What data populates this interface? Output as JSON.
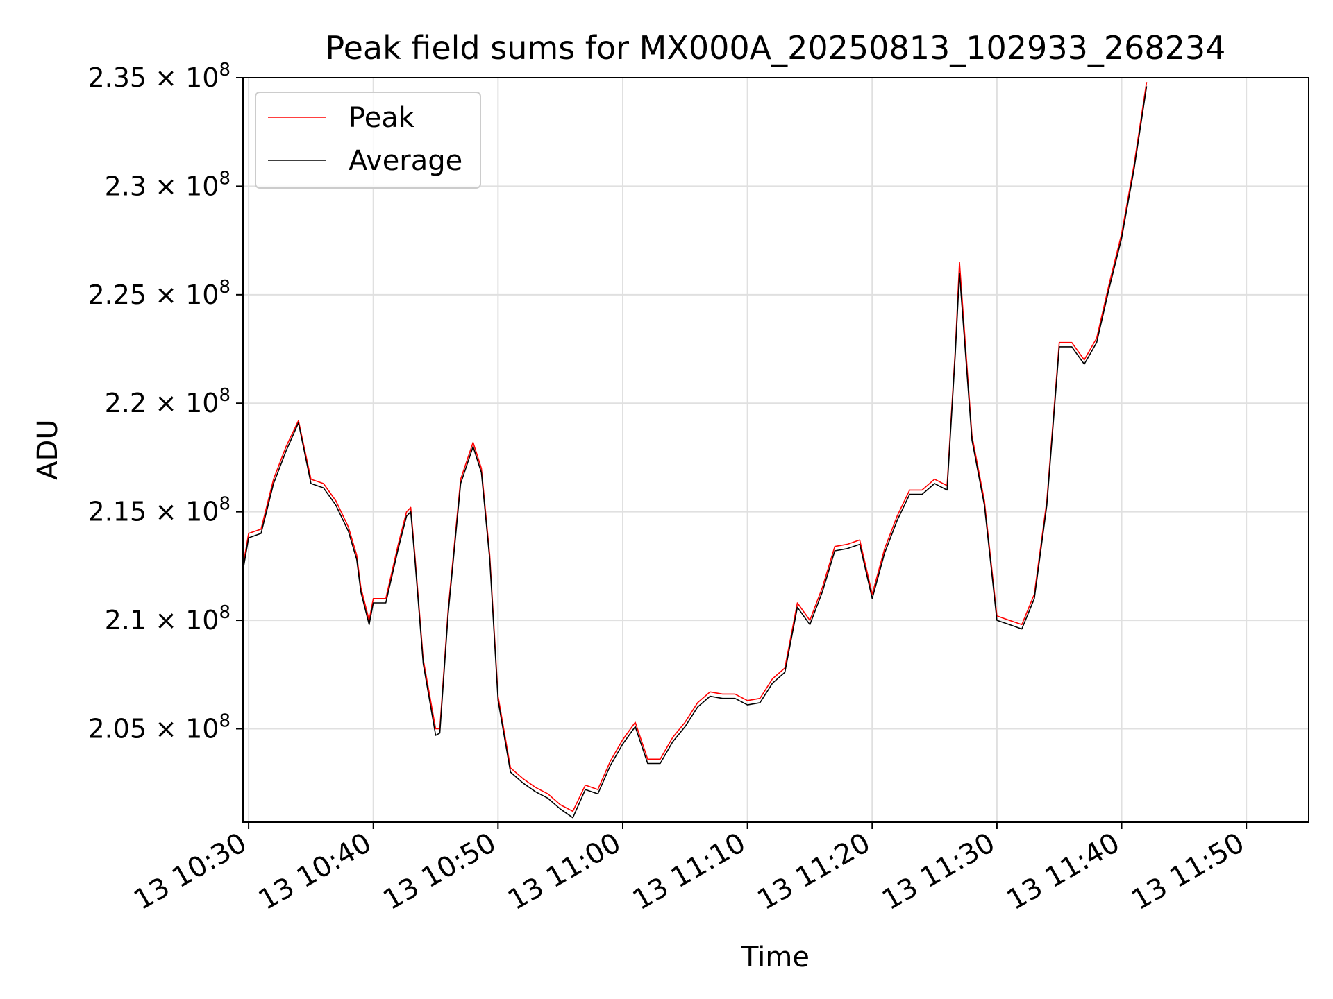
{
  "chart_data": {
    "type": "line",
    "title": "Peak field sums for MX000A_20250813_102933_268234",
    "xlabel": "Time",
    "ylabel": "ADU",
    "xlim": [
      "2025-08-13 10:29:33",
      "2025-08-13 11:55:00"
    ],
    "ylim": [
      200700000,
      235000000
    ],
    "grid": true,
    "legend": "top-left",
    "x_ticks": [
      {
        "value": "2025-08-13 10:30",
        "label": "13 10:30"
      },
      {
        "value": "2025-08-13 10:40",
        "label": "13 10:40"
      },
      {
        "value": "2025-08-13 10:50",
        "label": "13 10:50"
      },
      {
        "value": "2025-08-13 11:00",
        "label": "13 11:00"
      },
      {
        "value": "2025-08-13 11:10",
        "label": "13 11:10"
      },
      {
        "value": "2025-08-13 11:20",
        "label": "13 11:20"
      },
      {
        "value": "2025-08-13 11:30",
        "label": "13 11:30"
      },
      {
        "value": "2025-08-13 11:40",
        "label": "13 11:40"
      },
      {
        "value": "2025-08-13 11:50",
        "label": "13 11:50"
      }
    ],
    "y_ticks": [
      {
        "value": 205000000,
        "mantissa": "2.05"
      },
      {
        "value": 210000000,
        "mantissa": "2.1"
      },
      {
        "value": 215000000,
        "mantissa": "2.15"
      },
      {
        "value": 220000000,
        "mantissa": "2.2"
      },
      {
        "value": 225000000,
        "mantissa": "2.25"
      },
      {
        "value": 230000000,
        "mantissa": "2.3"
      },
      {
        "value": 235000000,
        "mantissa": "2.35"
      }
    ],
    "y_tick_multiplier": "× 10",
    "y_tick_exponent": "8",
    "x": [
      "2025-08-13 10:29:33",
      "2025-08-13 10:30:00",
      "2025-08-13 10:31:00",
      "2025-08-13 10:32:00",
      "2025-08-13 10:33:00",
      "2025-08-13 10:34:00",
      "2025-08-13 10:35:00",
      "2025-08-13 10:36:00",
      "2025-08-13 10:37:00",
      "2025-08-13 10:38:00",
      "2025-08-13 10:38:40",
      "2025-08-13 10:39:00",
      "2025-08-13 10:39:40",
      "2025-08-13 10:40:00",
      "2025-08-13 10:41:00",
      "2025-08-13 10:42:00",
      "2025-08-13 10:42:40",
      "2025-08-13 10:43:00",
      "2025-08-13 10:43:20",
      "2025-08-13 10:44:00",
      "2025-08-13 10:45:00",
      "2025-08-13 10:45:20",
      "2025-08-13 10:46:00",
      "2025-08-13 10:47:00",
      "2025-08-13 10:48:00",
      "2025-08-13 10:48:40",
      "2025-08-13 10:49:20",
      "2025-08-13 10:50:00",
      "2025-08-13 10:51:00",
      "2025-08-13 10:52:00",
      "2025-08-13 10:53:00",
      "2025-08-13 10:54:00",
      "2025-08-13 10:55:00",
      "2025-08-13 10:56:00",
      "2025-08-13 10:57:00",
      "2025-08-13 10:58:00",
      "2025-08-13 10:59:00",
      "2025-08-13 11:00:00",
      "2025-08-13 11:01:00",
      "2025-08-13 11:02:00",
      "2025-08-13 11:03:00",
      "2025-08-13 11:04:00",
      "2025-08-13 11:05:00",
      "2025-08-13 11:06:00",
      "2025-08-13 11:07:00",
      "2025-08-13 11:08:00",
      "2025-08-13 11:09:00",
      "2025-08-13 11:10:00",
      "2025-08-13 11:11:00",
      "2025-08-13 11:12:00",
      "2025-08-13 11:13:00",
      "2025-08-13 11:14:00",
      "2025-08-13 11:15:00",
      "2025-08-13 11:16:00",
      "2025-08-13 11:17:00",
      "2025-08-13 11:18:00",
      "2025-08-13 11:19:00",
      "2025-08-13 11:20:00",
      "2025-08-13 11:21:00",
      "2025-08-13 11:22:00",
      "2025-08-13 11:23:00",
      "2025-08-13 11:24:00",
      "2025-08-13 11:25:00",
      "2025-08-13 11:26:00",
      "2025-08-13 11:26:40",
      "2025-08-13 11:27:00",
      "2025-08-13 11:28:00",
      "2025-08-13 11:29:00",
      "2025-08-13 11:30:00",
      "2025-08-13 11:31:00",
      "2025-08-13 11:32:00",
      "2025-08-13 11:33:00",
      "2025-08-13 11:34:00",
      "2025-08-13 11:35:00",
      "2025-08-13 11:36:00",
      "2025-08-13 11:37:00",
      "2025-08-13 11:38:00",
      "2025-08-13 11:39:00",
      "2025-08-13 11:40:00",
      "2025-08-13 11:41:00",
      "2025-08-13 11:42:00"
    ],
    "series": [
      {
        "name": "Peak",
        "color": "#ff0000",
        "values": [
          212500000,
          214000000,
          214200000,
          216500000,
          218000000,
          219200000,
          216500000,
          216300000,
          215500000,
          214300000,
          213000000,
          211500000,
          210000000,
          211000000,
          211000000,
          213500000,
          215000000,
          215200000,
          213000000,
          208200000,
          205000000,
          205000000,
          210500000,
          216500000,
          218200000,
          217000000,
          213000000,
          206500000,
          203200000,
          202700000,
          202300000,
          202000000,
          201500000,
          201200000,
          202400000,
          202200000,
          203500000,
          204500000,
          205300000,
          203600000,
          203600000,
          204600000,
          205300000,
          206200000,
          206700000,
          206600000,
          206600000,
          206300000,
          206400000,
          207300000,
          207800000,
          210800000,
          210000000,
          211500000,
          213400000,
          213500000,
          213700000,
          211200000,
          213300000,
          214800000,
          216000000,
          216000000,
          216500000,
          216200000,
          222500000,
          226500000,
          218500000,
          215500000,
          210200000,
          210000000,
          209800000,
          211200000,
          215500000,
          222800000,
          222800000,
          222000000,
          223000000,
          225500000,
          227800000,
          231000000,
          234800000
        ]
      },
      {
        "name": "Average",
        "color": "#000000",
        "values": [
          212300000,
          213800000,
          214000000,
          216300000,
          217800000,
          219100000,
          216300000,
          216100000,
          215300000,
          214100000,
          212800000,
          211300000,
          209800000,
          210800000,
          210800000,
          213300000,
          214800000,
          215000000,
          212800000,
          208000000,
          204700000,
          204800000,
          210300000,
          216300000,
          218000000,
          216800000,
          212800000,
          206300000,
          203000000,
          202500000,
          202100000,
          201800000,
          201300000,
          200900000,
          202200000,
          202000000,
          203300000,
          204300000,
          205100000,
          203400000,
          203400000,
          204400000,
          205100000,
          206000000,
          206500000,
          206400000,
          206400000,
          206100000,
          206200000,
          207100000,
          207600000,
          210600000,
          209800000,
          211300000,
          213200000,
          213300000,
          213500000,
          211000000,
          213100000,
          214600000,
          215800000,
          215800000,
          216300000,
          216000000,
          222300000,
          226000000,
          218300000,
          215300000,
          210000000,
          209800000,
          209600000,
          211000000,
          215300000,
          222600000,
          222600000,
          221800000,
          222800000,
          225300000,
          227600000,
          230800000,
          234600000
        ]
      }
    ]
  }
}
